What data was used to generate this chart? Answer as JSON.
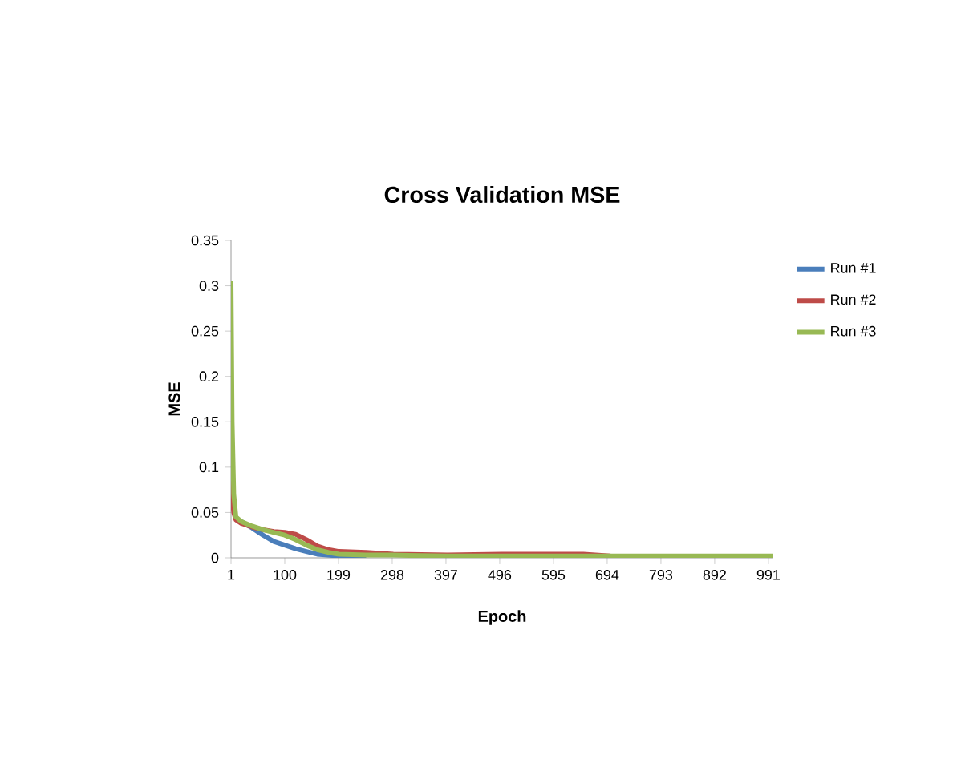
{
  "chart_data": {
    "type": "line",
    "title": "Cross Validation MSE",
    "xlabel": "Epoch",
    "ylabel": "MSE",
    "x": [
      1,
      3,
      6,
      10,
      20,
      40,
      60,
      80,
      100,
      120,
      140,
      160,
      180,
      200,
      250,
      300,
      400,
      500,
      600,
      650,
      700,
      800,
      900,
      1000
    ],
    "series": [
      {
        "name": "Run #1",
        "color": "#4a7ebb",
        "values": [
          null,
          null,
          null,
          null,
          0.04,
          0.033,
          0.025,
          0.018,
          0.014,
          0.01,
          0.007,
          0.004,
          0.003,
          0.002,
          0.002,
          null,
          null,
          null,
          null,
          null,
          null,
          null,
          null,
          null
        ]
      },
      {
        "name": "Run #2",
        "color": "#be4b48",
        "values": [
          0.1,
          0.07,
          0.05,
          0.042,
          0.038,
          0.034,
          0.031,
          0.029,
          0.028,
          0.026,
          0.02,
          0.013,
          0.009,
          0.007,
          0.006,
          0.004,
          0.003,
          0.004,
          0.004,
          0.004,
          0.002,
          null,
          null,
          null
        ]
      },
      {
        "name": "Run #3",
        "color": "#98b954",
        "values": [
          0.305,
          0.15,
          0.07,
          0.045,
          0.04,
          0.035,
          0.031,
          0.028,
          0.025,
          0.02,
          0.014,
          0.009,
          0.006,
          0.004,
          0.003,
          0.003,
          0.002,
          0.002,
          0.002,
          0.002,
          0.002,
          0.002,
          0.002,
          0.002
        ]
      }
    ],
    "xlim": [
      1,
      1000
    ],
    "xticks": [
      1,
      100,
      199,
      298,
      397,
      496,
      595,
      694,
      793,
      892,
      991
    ],
    "ylim": [
      0,
      0.35
    ],
    "yticks": [
      0,
      0.05,
      0.1,
      0.15,
      0.2,
      0.25,
      0.3,
      0.35
    ],
    "legend": "right",
    "marker": "none",
    "line_style": "solid"
  }
}
